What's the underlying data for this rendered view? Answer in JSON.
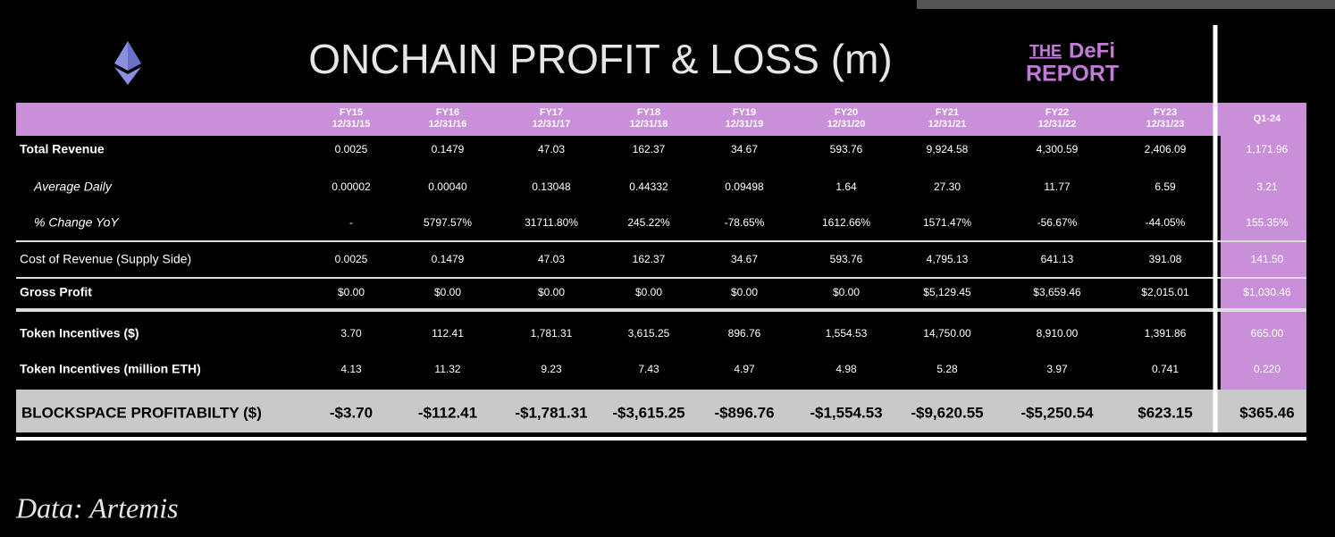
{
  "header": {
    "title": "ONCHAIN PROFIT & LOSS (m)",
    "logo": {
      "the": "THE",
      "defi": "DeFi",
      "report": "REPORT"
    }
  },
  "table": {
    "columns": [
      {
        "label": "FY15",
        "date": "12/31/15"
      },
      {
        "label": "FY16",
        "date": "12/31/16"
      },
      {
        "label": "FY17",
        "date": "12/31/17"
      },
      {
        "label": "FY18",
        "date": "12/31/18"
      },
      {
        "label": "FY19",
        "date": "12/31/19"
      },
      {
        "label": "FY20",
        "date": "12/31/20"
      },
      {
        "label": "FY21",
        "date": "12/31/21"
      },
      {
        "label": "FY22",
        "date": "12/31/22"
      },
      {
        "label": "FY23",
        "date": "12/31/23"
      },
      {
        "label": "Q1-24"
      }
    ],
    "rows": [
      {
        "label": "Total Revenue",
        "values": [
          "0.0025",
          "0.1479",
          "47.03",
          "162.37",
          "34.67",
          "593.76",
          "9,924.58",
          "4,300.59",
          "2,406.09",
          "1,171.96"
        ]
      },
      {
        "label": "Average Daily",
        "values": [
          "0.00002",
          "0.00040",
          "0.13048",
          "0.44332",
          "0.09498",
          "1.64",
          "27.30",
          "11.77",
          "6.59",
          "3.21"
        ]
      },
      {
        "label": "% Change YoY",
        "values": [
          "-",
          "5797.57%",
          "31711.80%",
          "245.22%",
          "-78.65%",
          "1612.66%",
          "1571.47%",
          "-56.67%",
          "-44.05%",
          "155.35%"
        ]
      },
      {
        "label": "Cost of Revenue (Supply Side)",
        "values": [
          "0.0025",
          "0.1479",
          "47.03",
          "162.37",
          "34.67",
          "593.76",
          "4,795.13",
          "641.13",
          "391.08",
          "141.50"
        ]
      },
      {
        "label": "Gross Profit",
        "values": [
          "$0.00",
          "$0.00",
          "$0.00",
          "$0.00",
          "$0.00",
          "$0.00",
          "$5,129.45",
          "$3,659.46",
          "$2,015.01",
          "$1,030.46"
        ]
      },
      {
        "label": "Token Incentives ($)",
        "values": [
          "3.70",
          "112.41",
          "1,781.31",
          "3,615.25",
          "896.76",
          "1,554.53",
          "14,750.00",
          "8,910.00",
          "1,391.86",
          "665.00"
        ]
      },
      {
        "label": "Token Incentives (million ETH)",
        "values": [
          "4.13",
          "11.32",
          "9.23",
          "7.43",
          "4.97",
          "4.98",
          "5.28",
          "3.97",
          "0.741",
          "0.220"
        ]
      },
      {
        "label": "BLOCKSPACE PROFITABILTY ($)",
        "values": [
          "-$3.70",
          "-$112.41",
          "-$1,781.31",
          "-$3,615.25",
          "-$896.76",
          "-$1,554.53",
          "-$9,620.55",
          "-$5,250.54",
          "$623.15",
          "$365.46"
        ]
      }
    ]
  },
  "footer": {
    "source": "Data: Artemis"
  }
}
